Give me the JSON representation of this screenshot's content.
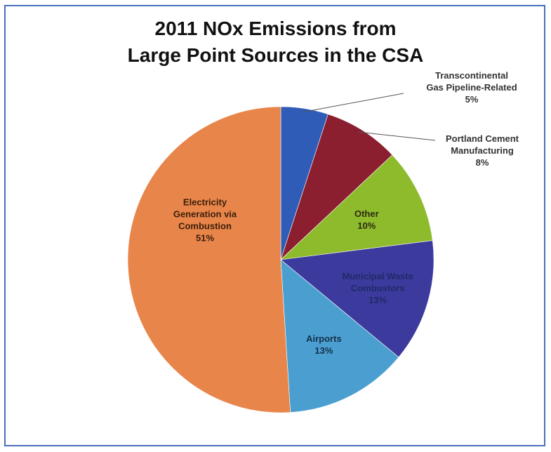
{
  "chart_data": {
    "type": "pie",
    "title_lines": [
      "2011 NOx Emissions from",
      "Large Point Sources in the CSA"
    ],
    "slices": [
      {
        "label_lines": [
          "Transcontinental",
          "Gas Pipeline-Related",
          "5%"
        ],
        "value": 5,
        "color": "#2f5cb6",
        "label_color": "#333333"
      },
      {
        "label_lines": [
          "Portland Cement",
          "Manufacturing",
          "8%"
        ],
        "value": 8,
        "color": "#8b1e2f",
        "label_color": "#333333"
      },
      {
        "label_lines": [
          "Other",
          "10%"
        ],
        "value": 10,
        "color": "#8dbb2c",
        "label_color": "#2f2a12"
      },
      {
        "label_lines": [
          "Municipal Waste",
          "Combustors",
          "13%"
        ],
        "value": 13,
        "color": "#3d3a9e",
        "label_color": "#1f2a66"
      },
      {
        "label_lines": [
          "Airports",
          "13%"
        ],
        "value": 13,
        "color": "#4a9fd0",
        "label_color": "#14304a"
      },
      {
        "label_lines": [
          "Electricity",
          "Generation via",
          "Combustion",
          "51%"
        ],
        "value": 51,
        "color": "#e8854a",
        "label_color": "#3a1e0a"
      }
    ]
  }
}
